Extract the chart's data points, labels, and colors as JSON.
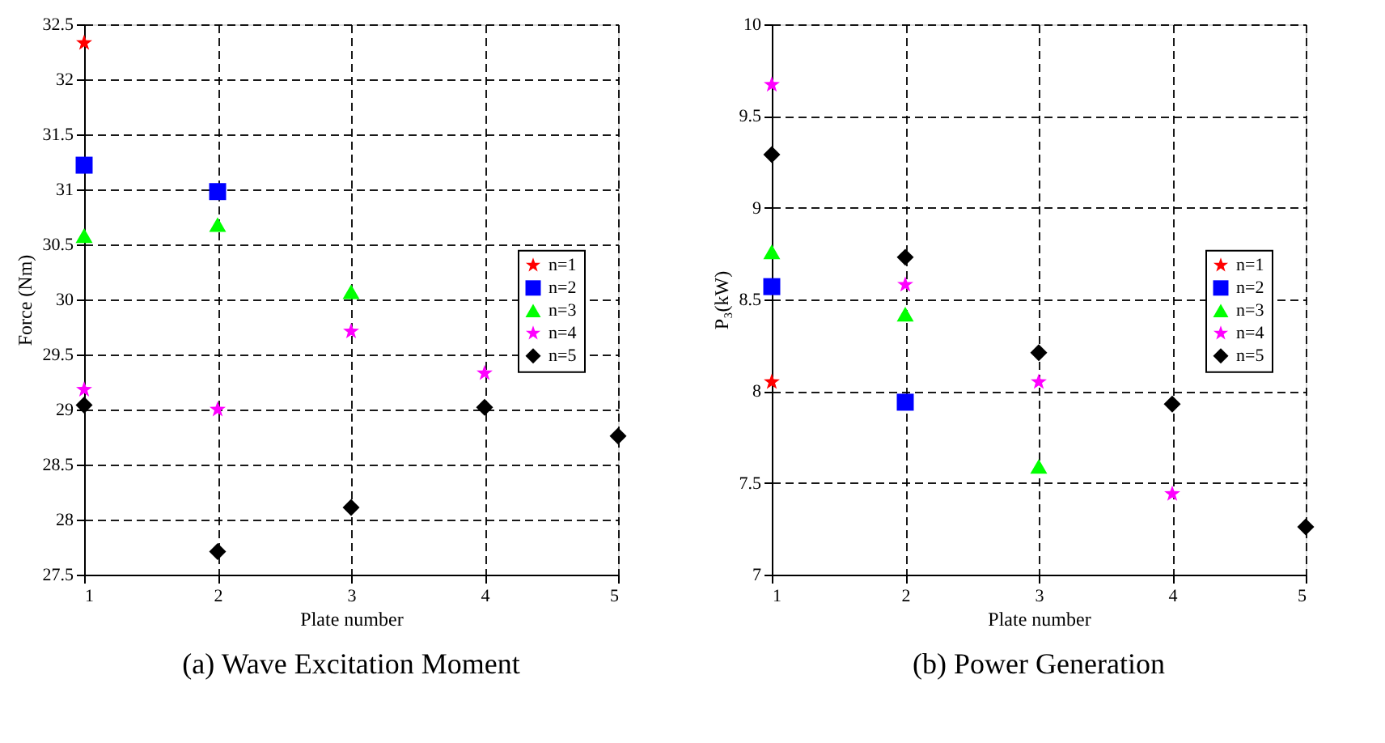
{
  "chart_data": [
    {
      "type": "scatter",
      "title": "(a) Wave Excitation Moment",
      "xlabel": "Plate number",
      "ylabel": "Force (Nm)",
      "xlim": [
        1,
        5
      ],
      "xticks": [
        1,
        2,
        3,
        4,
        5
      ],
      "ylim": [
        27.5,
        32.5
      ],
      "yticks": [
        27.5,
        28,
        28.5,
        29,
        29.5,
        30,
        30.5,
        31,
        31.5,
        32,
        32.5
      ],
      "grid": true,
      "legend": "right",
      "series": [
        {
          "name": "n=1",
          "color": "#ff0000",
          "marker": "star",
          "x": [
            1
          ],
          "values": [
            32.33
          ]
        },
        {
          "name": "n=2",
          "color": "#0000ff",
          "marker": "square",
          "x": [
            1,
            2
          ],
          "values": [
            31.22,
            30.98
          ]
        },
        {
          "name": "n=3",
          "color": "#00ff00",
          "marker": "triangle",
          "x": [
            1,
            2,
            3
          ],
          "values": [
            30.58,
            30.68,
            30.07
          ]
        },
        {
          "name": "n=4",
          "color": "#ff00ff",
          "marker": "star",
          "x": [
            1,
            2,
            3,
            4
          ],
          "values": [
            29.18,
            29.0,
            29.71,
            29.33
          ]
        },
        {
          "name": "n=5",
          "color": "#000000",
          "marker": "diamond",
          "x": [
            1,
            2,
            3,
            4,
            5
          ],
          "values": [
            29.04,
            27.71,
            28.11,
            29.02,
            28.76
          ]
        }
      ]
    },
    {
      "type": "scatter",
      "title": "(b) Power Generation",
      "xlabel": "Plate number",
      "ylabel": "P₃(kW)",
      "xlim": [
        1,
        5
      ],
      "xticks": [
        1,
        2,
        3,
        4,
        5
      ],
      "ylim": [
        7,
        10
      ],
      "yticks": [
        7,
        7.5,
        8,
        8.5,
        9,
        9.5,
        10
      ],
      "grid": true,
      "legend": "right",
      "series": [
        {
          "name": "n=1",
          "color": "#ff0000",
          "marker": "star",
          "x": [
            1
          ],
          "values": [
            8.05
          ]
        },
        {
          "name": "n=2",
          "color": "#0000ff",
          "marker": "square",
          "x": [
            1,
            2
          ],
          "values": [
            8.57,
            7.94
          ]
        },
        {
          "name": "n=3",
          "color": "#00ff00",
          "marker": "triangle",
          "x": [
            1,
            2,
            3
          ],
          "values": [
            8.76,
            8.42,
            7.59
          ]
        },
        {
          "name": "n=4",
          "color": "#ff00ff",
          "marker": "star",
          "x": [
            1,
            2,
            3,
            4
          ],
          "values": [
            9.67,
            8.58,
            8.05,
            7.44
          ]
        },
        {
          "name": "n=5",
          "color": "#000000",
          "marker": "diamond",
          "x": [
            1,
            2,
            3,
            4,
            5
          ],
          "values": [
            9.29,
            8.73,
            8.21,
            7.93,
            7.26
          ]
        }
      ]
    }
  ]
}
